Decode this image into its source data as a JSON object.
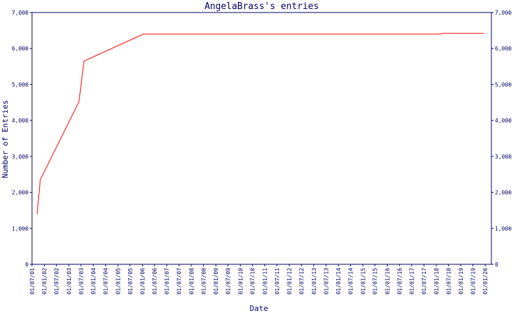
{
  "chart_data": {
    "type": "line",
    "title": "AngelaBrass's entries",
    "x_label": "Date",
    "y_label": "Number of Entries",
    "x": [
      "2001-09-15",
      "2001-11-01",
      "2003-06-01",
      "2003-08-15",
      "2006-01-15",
      "2018-03-01",
      "2018-04-01",
      "2019-12-15"
    ],
    "series": [
      {
        "name": "entries",
        "color": "#ff0000",
        "values": [
          1400,
          2350,
          4520,
          5650,
          6400,
          6400,
          6420,
          6420
        ]
      }
    ],
    "xlim": [
      "2001-07-01",
      "2020-04-01"
    ],
    "xticks": [
      {
        "value": "2001-07-01",
        "label": "01/07/01"
      },
      {
        "value": "2002-01-01",
        "label": "01/01/02"
      },
      {
        "value": "2002-07-01",
        "label": "01/07/02"
      },
      {
        "value": "2003-01-01",
        "label": "01/01/03"
      },
      {
        "value": "2003-07-01",
        "label": "01/07/03"
      },
      {
        "value": "2004-01-01",
        "label": "01/01/04"
      },
      {
        "value": "2004-07-01",
        "label": "01/07/04"
      },
      {
        "value": "2005-01-01",
        "label": "01/01/05"
      },
      {
        "value": "2005-07-01",
        "label": "01/07/05"
      },
      {
        "value": "2006-01-01",
        "label": "01/01/06"
      },
      {
        "value": "2006-07-01",
        "label": "01/07/06"
      },
      {
        "value": "2007-01-01",
        "label": "01/01/07"
      },
      {
        "value": "2007-07-01",
        "label": "01/07/07"
      },
      {
        "value": "2008-01-01",
        "label": "01/01/08"
      },
      {
        "value": "2008-07-01",
        "label": "01/07/08"
      },
      {
        "value": "2009-01-01",
        "label": "01/01/09"
      },
      {
        "value": "2009-07-01",
        "label": "01/07/09"
      },
      {
        "value": "2010-01-01",
        "label": "01/01/10"
      },
      {
        "value": "2010-07-01",
        "label": "01/07/10"
      },
      {
        "value": "2011-01-01",
        "label": "01/01/11"
      },
      {
        "value": "2011-07-01",
        "label": "01/07/11"
      },
      {
        "value": "2012-01-01",
        "label": "01/01/12"
      },
      {
        "value": "2012-07-01",
        "label": "01/07/12"
      },
      {
        "value": "2013-01-01",
        "label": "01/01/13"
      },
      {
        "value": "2013-07-01",
        "label": "01/07/13"
      },
      {
        "value": "2014-01-01",
        "label": "01/01/14"
      },
      {
        "value": "2014-07-01",
        "label": "01/07/14"
      },
      {
        "value": "2015-01-01",
        "label": "01/01/15"
      },
      {
        "value": "2015-07-01",
        "label": "01/07/15"
      },
      {
        "value": "2016-01-01",
        "label": "01/01/16"
      },
      {
        "value": "2016-07-01",
        "label": "01/07/16"
      },
      {
        "value": "2017-01-01",
        "label": "01/01/17"
      },
      {
        "value": "2017-07-01",
        "label": "01/07/17"
      },
      {
        "value": "2018-01-01",
        "label": "01/01/18"
      },
      {
        "value": "2018-07-01",
        "label": "01/07/18"
      },
      {
        "value": "2019-01-01",
        "label": "01/01/19"
      },
      {
        "value": "2019-07-01",
        "label": "01/07/19"
      },
      {
        "value": "2020-01-01",
        "label": "01/01/20"
      }
    ],
    "ylim": [
      0,
      7000
    ],
    "yticks": [
      0,
      {
        "value": 1000,
        "label": "1,000"
      },
      {
        "value": 2000,
        "label": "2,000"
      },
      {
        "value": 3000,
        "label": "3,000"
      },
      {
        "value": 4000,
        "label": "4,000"
      },
      {
        "value": 5000,
        "label": "5,000"
      },
      {
        "value": 6000,
        "label": "6,000"
      },
      {
        "value": 7000,
        "label": "7,000"
      }
    ],
    "grid": false,
    "axis_color": "#000066"
  }
}
